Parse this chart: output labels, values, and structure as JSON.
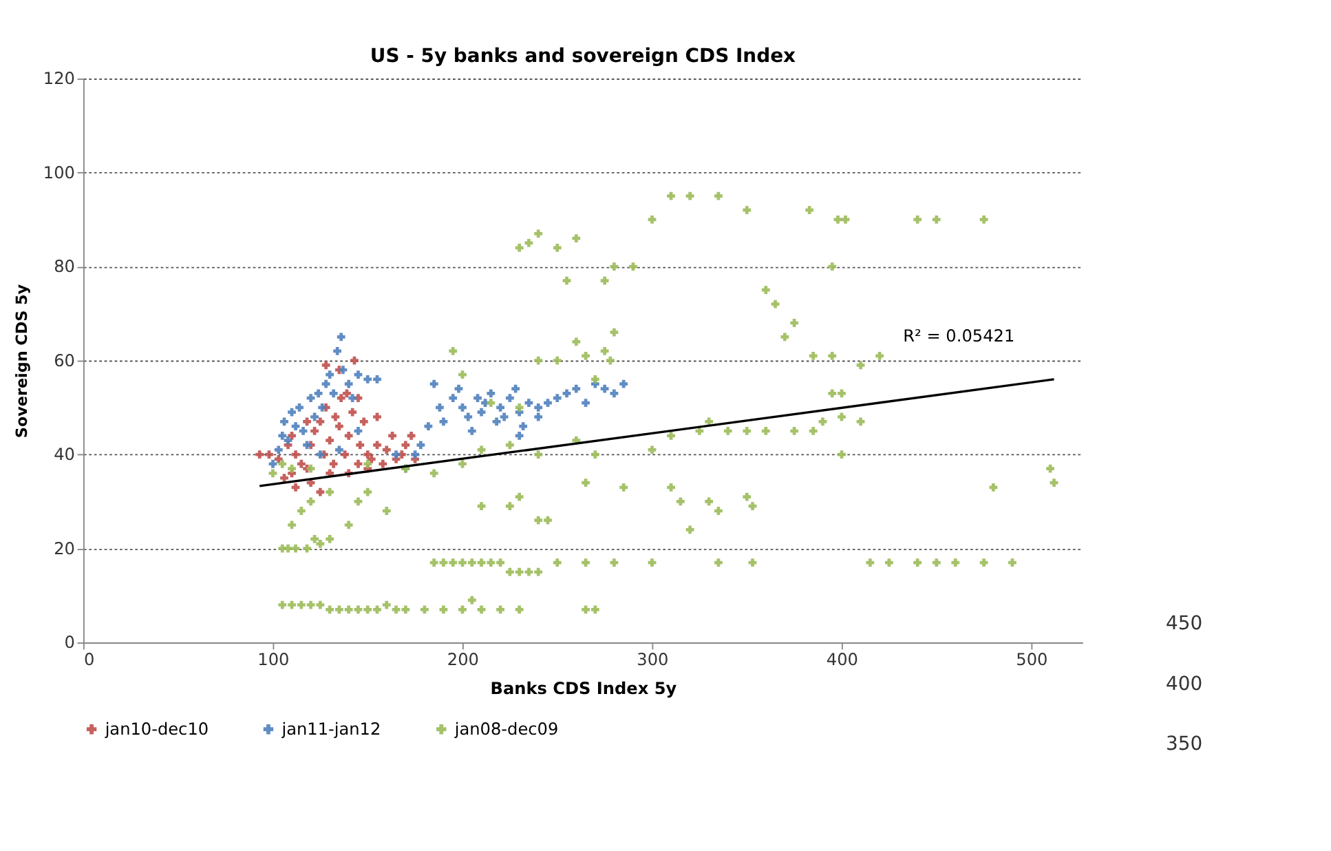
{
  "chart_data": {
    "type": "scatter",
    "title": "US - 5y banks and sovereign CDS Index",
    "xlabel": "Banks CDS Index 5y",
    "ylabel": "Sovereign CDS 5y",
    "xlim": [
      0,
      527
    ],
    "xticks": [
      0,
      100,
      200,
      300,
      400,
      500
    ],
    "ylim": [
      0,
      120
    ],
    "yticks": [
      0,
      20,
      40,
      60,
      80,
      100,
      120
    ],
    "grid": "y",
    "legend": "bottom",
    "marker": "cross",
    "annotations": [
      "R² = 0.05421",
      "450",
      "400",
      "350"
    ],
    "series": [
      {
        "name": "jan10-dec10",
        "color": "#c0504d",
        "x": [
          93,
          98,
          103,
          106,
          108,
          110,
          112,
          115,
          118,
          120,
          122,
          125,
          127,
          128,
          130,
          132,
          133,
          135,
          136,
          138,
          139,
          140,
          142,
          143,
          145,
          146,
          148,
          150,
          152,
          155,
          158,
          160,
          163,
          165,
          168,
          170,
          173,
          175,
          140,
          130,
          120,
          112,
          125,
          150,
          135,
          128,
          145,
          155,
          110,
          118
        ],
        "values": [
          40,
          40,
          39,
          35,
          42,
          44,
          40,
          38,
          37,
          42,
          45,
          47,
          40,
          50,
          43,
          38,
          48,
          46,
          52,
          40,
          53,
          44,
          49,
          60,
          38,
          42,
          47,
          40,
          39,
          42,
          38,
          41,
          44,
          39,
          40,
          42,
          44,
          39,
          36,
          36,
          34,
          33,
          32,
          37,
          58,
          59,
          52,
          48,
          36,
          47
        ]
      },
      {
        "name": "jan11-jan12",
        "color": "#4f81bd",
        "x": [
          100,
          103,
          105,
          106,
          108,
          110,
          112,
          114,
          116,
          118,
          120,
          122,
          124,
          126,
          128,
          130,
          132,
          134,
          136,
          137,
          140,
          142,
          145,
          150,
          155,
          135,
          125,
          145,
          165,
          170,
          175,
          178,
          182,
          185,
          188,
          190,
          195,
          198,
          200,
          203,
          205,
          208,
          210,
          212,
          215,
          218,
          220,
          222,
          225,
          228,
          230,
          232,
          235,
          240,
          245,
          250,
          255,
          260,
          265,
          270,
          275,
          280,
          285,
          230,
          240
        ],
        "values": [
          38,
          41,
          44,
          47,
          43,
          49,
          46,
          50,
          45,
          42,
          52,
          48,
          53,
          50,
          55,
          57,
          53,
          62,
          65,
          58,
          55,
          52,
          57,
          56,
          56,
          41,
          40,
          45,
          40,
          37,
          40,
          42,
          46,
          55,
          50,
          47,
          52,
          54,
          50,
          48,
          45,
          52,
          49,
          51,
          53,
          47,
          50,
          48,
          52,
          54,
          49,
          46,
          51,
          50,
          51,
          52,
          53,
          54,
          51,
          55,
          54,
          53,
          55,
          44,
          48
        ]
      },
      {
        "name": "jan08-dec09",
        "color": "#9bbb59",
        "x": [
          105,
          110,
          115,
          120,
          125,
          130,
          135,
          140,
          145,
          150,
          155,
          160,
          165,
          170,
          180,
          190,
          200,
          205,
          210,
          220,
          230,
          265,
          270,
          105,
          108,
          112,
          118,
          125,
          130,
          122,
          185,
          190,
          195,
          200,
          205,
          210,
          215,
          220,
          225,
          230,
          235,
          240,
          250,
          265,
          280,
          300,
          335,
          353,
          415,
          425,
          440,
          450,
          460,
          475,
          490,
          110,
          115,
          120,
          130,
          140,
          145,
          150,
          160,
          210,
          225,
          230,
          240,
          245,
          265,
          285,
          310,
          315,
          330,
          335,
          320,
          350,
          353,
          480,
          512,
          510,
          100,
          105,
          110,
          120,
          150,
          170,
          185,
          200,
          210,
          225,
          240,
          260,
          270,
          300,
          310,
          325,
          330,
          340,
          350,
          360,
          375,
          385,
          390,
          400,
          410,
          400,
          395,
          215,
          230,
          240,
          250,
          265,
          270,
          275,
          278,
          280,
          260,
          200,
          195,
          410,
          420,
          385,
          395,
          370,
          230,
          235,
          240,
          250,
          260,
          255,
          275,
          280,
          290,
          300,
          310,
          320,
          335,
          350,
          383,
          398,
          402,
          440,
          450,
          475,
          395,
          360,
          365,
          375,
          400
        ],
        "values": [
          8,
          8,
          8,
          8,
          8,
          7,
          7,
          7,
          7,
          7,
          7,
          8,
          7,
          7,
          7,
          7,
          7,
          9,
          7,
          7,
          7,
          7,
          7,
          20,
          20,
          20,
          20,
          21,
          22,
          22,
          17,
          17,
          17,
          17,
          17,
          17,
          17,
          17,
          15,
          15,
          15,
          15,
          17,
          17,
          17,
          17,
          17,
          17,
          17,
          17,
          17,
          17,
          17,
          17,
          17,
          25,
          28,
          30,
          32,
          25,
          30,
          32,
          28,
          29,
          29,
          31,
          26,
          26,
          34,
          33,
          33,
          30,
          30,
          28,
          24,
          31,
          29,
          33,
          34,
          37,
          36,
          38,
          37,
          37,
          38,
          37,
          36,
          38,
          41,
          42,
          40,
          43,
          40,
          41,
          44,
          45,
          47,
          45,
          45,
          45,
          45,
          45,
          47,
          48,
          47,
          53,
          53,
          51,
          50,
          60,
          60,
          61,
          56,
          62,
          60,
          66,
          64,
          57,
          62,
          59,
          61,
          61,
          61,
          65,
          84,
          85,
          87,
          84,
          86,
          77,
          77,
          80,
          80,
          90,
          95,
          95,
          95,
          92,
          92,
          90,
          90,
          90,
          90,
          90,
          80,
          75,
          72,
          68,
          40
        ]
      },
      {
        "type": "line",
        "marker": "none",
        "color": "#000000",
        "x": [
          93,
          512
        ],
        "values": [
          33.3,
          56
        ]
      }
    ]
  }
}
